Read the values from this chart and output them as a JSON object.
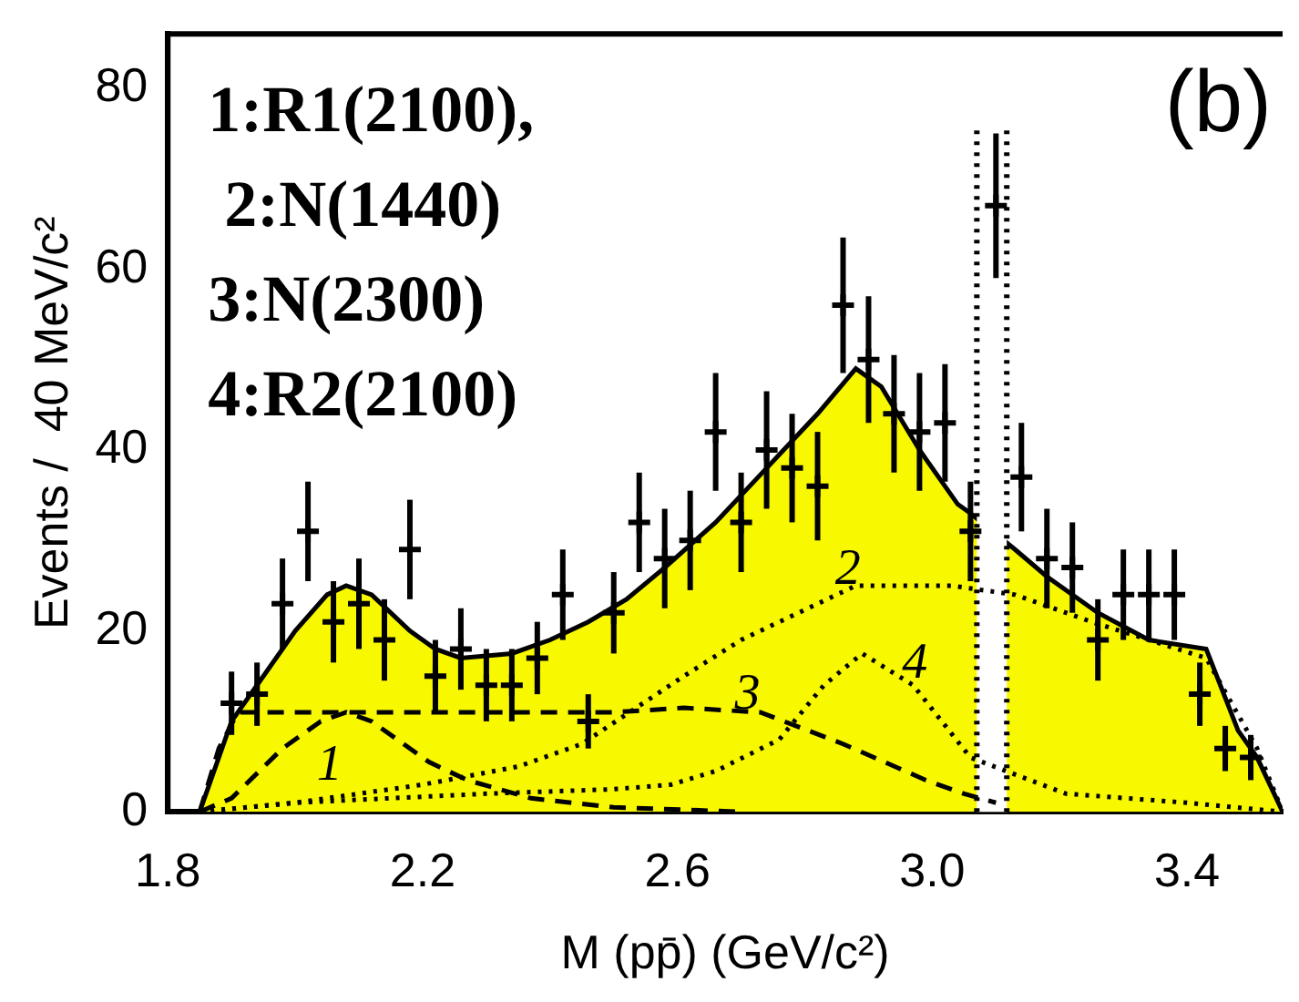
{
  "chart_data": {
    "type": "scatter",
    "xlabel": "M (pp̄) (GeV/c²)",
    "ylabel": "Events /  40 MeV/c²",
    "xlim": [
      1.8,
      3.55
    ],
    "xticks": [
      {
        "value": 1.8,
        "label": "1.8"
      },
      {
        "value": 2.2,
        "label": "2.2"
      },
      {
        "value": 2.6,
        "label": "2.6"
      },
      {
        "value": 3.0,
        "label": "3.0"
      },
      {
        "value": 3.4,
        "label": "3.4"
      }
    ],
    "ylim": [
      0,
      86
    ],
    "yticks": [
      0,
      20,
      40,
      60,
      80
    ],
    "grid": false,
    "legend": false,
    "series": [
      {
        "type": "area",
        "color": "#f8f800",
        "x": [
          1.85,
          1.9,
          1.95,
          2.0,
          2.05,
          2.08,
          2.12,
          2.18,
          2.22,
          2.26,
          2.34,
          2.4,
          2.46,
          2.52,
          2.58,
          2.66,
          2.74,
          2.82,
          2.88,
          2.92,
          2.98,
          3.04,
          3.06,
          3.13,
          3.18,
          3.26,
          3.34,
          3.43,
          3.48,
          3.51,
          3.55
        ],
        "values": [
          0,
          10,
          15,
          20,
          24,
          25,
          24,
          20,
          18,
          17,
          17.5,
          19,
          21,
          23.5,
          27,
          32,
          38,
          44,
          49,
          47,
          40,
          34,
          33,
          29,
          26,
          22,
          19,
          18,
          9,
          6,
          0
        ]
      },
      {
        "type": "line",
        "color": "#000000",
        "line_style": "dashed",
        "x": [
          1.85,
          1.9,
          1.98,
          2.04,
          2.08,
          2.12,
          2.16,
          2.21,
          2.27,
          2.37,
          2.5,
          2.7
        ],
        "values": [
          0,
          1.5,
          7,
          10,
          11,
          10,
          8,
          5.5,
          3.5,
          1.5,
          0.5,
          0
        ]
      },
      {
        "type": "line",
        "color": "#000000",
        "line_style": "dotted",
        "x": [
          1.85,
          2.0,
          2.2,
          2.35,
          2.45,
          2.61,
          2.7,
          2.88,
          3.03,
          3.13,
          3.25,
          3.43,
          3.51,
          3.55
        ],
        "values": [
          0,
          1,
          3,
          5,
          7.5,
          15,
          19,
          25,
          25,
          24,
          21,
          17,
          7,
          0
        ]
      },
      {
        "type": "line",
        "color": "#000000",
        "line_style": "dashed",
        "x": [
          1.85,
          1.88,
          1.91,
          2.1,
          2.3,
          2.5,
          2.61,
          2.73,
          2.86,
          2.99,
          3.05,
          3.1
        ],
        "values": [
          0,
          7,
          11,
          11,
          11,
          11,
          11.5,
          11,
          7.5,
          3.5,
          2,
          1
        ]
      },
      {
        "type": "line",
        "color": "#000000",
        "line_style": "dotted",
        "x": [
          1.85,
          2.0,
          2.3,
          2.5,
          2.59,
          2.66,
          2.76,
          2.83,
          2.89,
          2.97,
          3.06,
          3.21,
          3.4,
          3.55
        ],
        "values": [
          0,
          1,
          2,
          2.5,
          3,
          4.5,
          8,
          14,
          17.5,
          14,
          6,
          2,
          1,
          0
        ]
      },
      {
        "type": "scatter",
        "color": "#000000",
        "marker": "cross",
        "x": [
          1.9,
          1.94,
          1.98,
          2.02,
          2.06,
          2.1,
          2.14,
          2.18,
          2.22,
          2.26,
          2.3,
          2.34,
          2.38,
          2.42,
          2.46,
          2.5,
          2.54,
          2.58,
          2.62,
          2.66,
          2.7,
          2.74,
          2.78,
          2.82,
          2.86,
          2.9,
          2.94,
          2.98,
          3.02,
          3.06,
          3.1,
          3.14,
          3.18,
          3.22,
          3.26,
          3.3,
          3.34,
          3.38,
          3.42,
          3.46,
          3.5
        ],
        "values": [
          12,
          13,
          23,
          31,
          21,
          23,
          19,
          29,
          15,
          18,
          14,
          14,
          17,
          24,
          10,
          22,
          32,
          28,
          30,
          42,
          32,
          40,
          38,
          36,
          56,
          50,
          44,
          42,
          43,
          31,
          67,
          37,
          28,
          27,
          19,
          24,
          24,
          24,
          13,
          7,
          6
        ],
        "errors": [
          3.5,
          3.5,
          5,
          5.5,
          4.5,
          5,
          4.5,
          5.5,
          4,
          4.5,
          4,
          4,
          4,
          5,
          3,
          4.5,
          5.5,
          5.5,
          5.5,
          6.5,
          5.5,
          6.5,
          6,
          6,
          7.5,
          7,
          6.5,
          6.5,
          6.5,
          5.5,
          8,
          6,
          5.5,
          5,
          4.5,
          5,
          5,
          5,
          3.5,
          2.5,
          2.5
        ]
      }
    ],
    "bands": [
      {
        "axis": "x",
        "from": 3.07,
        "to": 3.117,
        "color": "#ffffff"
      }
    ],
    "ref_lines": [
      {
        "axis": "x",
        "value": 3.07,
        "line_style": "dotted"
      },
      {
        "axis": "x",
        "value": 3.117,
        "line_style": "dotted"
      }
    ],
    "annotations": [
      "1:R1(2100),",
      " 2:N(1440)",
      "3:N(2300)",
      "4:R2(2100)",
      "(b)",
      "1",
      "2",
      "3",
      "4"
    ]
  }
}
